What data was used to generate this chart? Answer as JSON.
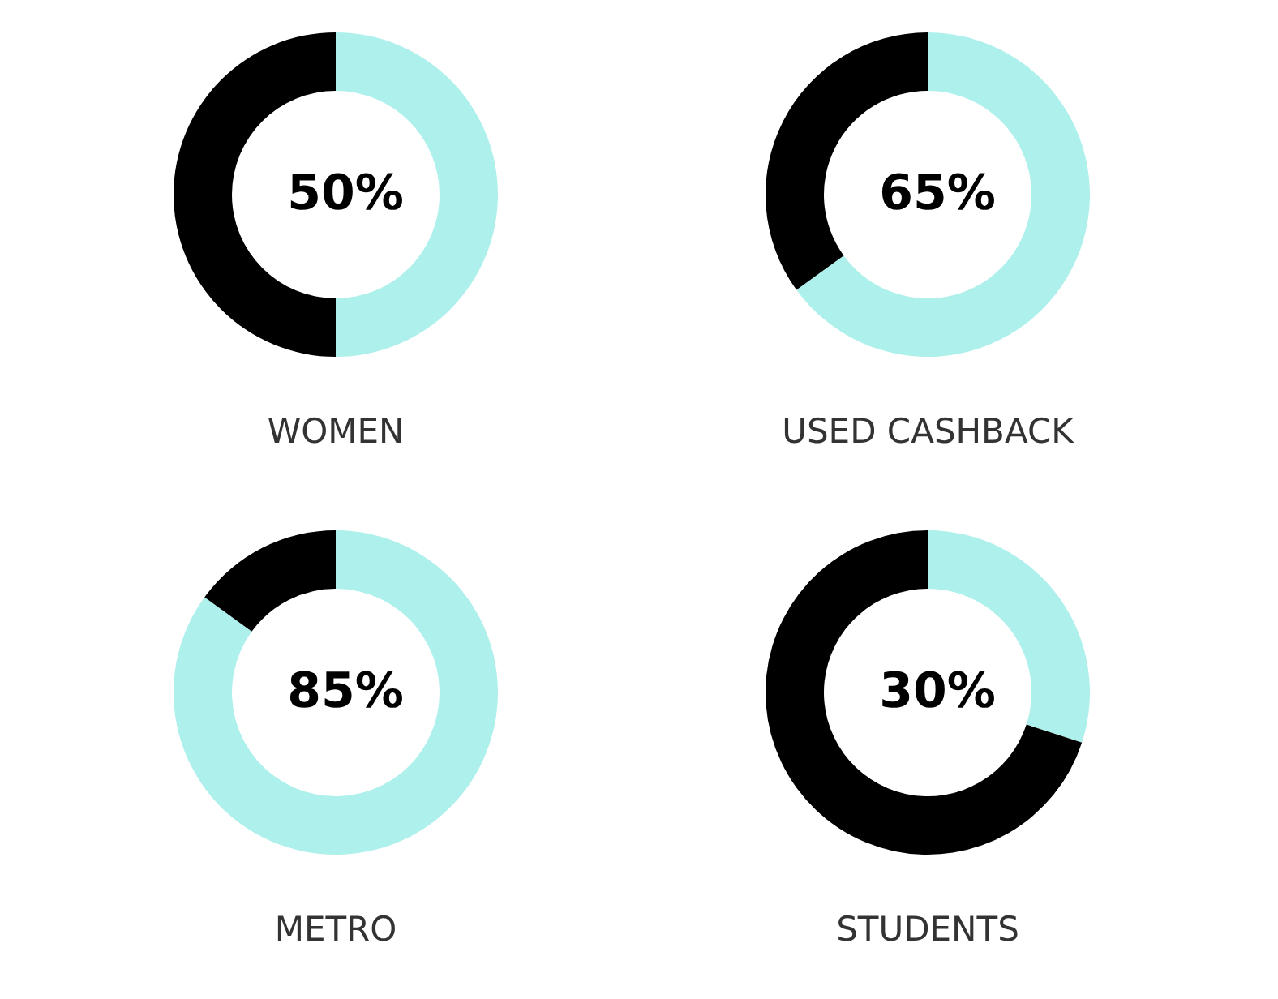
{
  "chart_data": [
    {
      "type": "donut",
      "title": "WOMEN",
      "categories": [
        null,
        null
      ],
      "values": [
        50,
        50
      ],
      "colors": [
        "#aef0ec",
        "#000000"
      ],
      "value_labels": [
        "50%",
        null
      ]
    },
    {
      "type": "donut",
      "title": "USED CASHBACK",
      "categories": [
        null,
        null
      ],
      "values": [
        65,
        35
      ],
      "colors": [
        "#aef0ec",
        "#000000"
      ],
      "value_labels": [
        "65%",
        null
      ]
    },
    {
      "type": "donut",
      "title": "METRO",
      "categories": [
        null,
        null
      ],
      "values": [
        85,
        15
      ],
      "colors": [
        "#aef0ec",
        "#000000"
      ],
      "value_labels": [
        "85%",
        null
      ]
    },
    {
      "type": "donut",
      "title": "STUDENTS",
      "categories": [
        null,
        null
      ],
      "values": [
        30,
        70
      ],
      "colors": [
        "#aef0ec",
        "#000000"
      ],
      "value_labels": [
        "30%",
        null
      ]
    }
  ]
}
